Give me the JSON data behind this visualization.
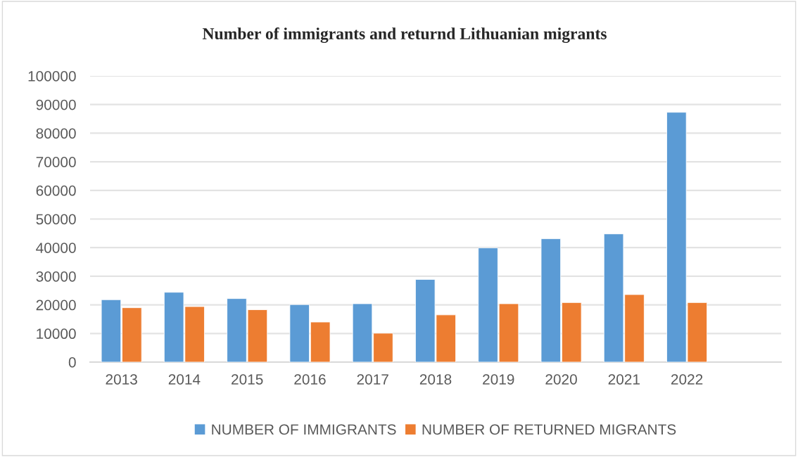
{
  "chart_data": {
    "type": "bar",
    "title": "Number of immigrants and returnd Lithuanian migrants",
    "categories": [
      "2013",
      "2014",
      "2015",
      "2016",
      "2017",
      "2018",
      "2019",
      "2020",
      "2021",
      "2022",
      null
    ],
    "series": [
      {
        "name": "NUMBER OF IMMIGRANTS",
        "color": "#5b9bd5",
        "values": [
          21800,
          24400,
          22200,
          20100,
          20400,
          28900,
          39900,
          43100,
          44800,
          87300,
          null
        ]
      },
      {
        "name": "NUMBER OF RETURNED MIGRANTS",
        "color": "#ed7d31",
        "values": [
          19000,
          19400,
          18300,
          14000,
          10100,
          16500,
          20400,
          20800,
          23600,
          20800,
          null
        ]
      }
    ],
    "ylim": [
      0,
      100000
    ],
    "yticks": [
      0,
      10000,
      20000,
      30000,
      40000,
      50000,
      60000,
      70000,
      80000,
      90000,
      100000
    ],
    "grid": "y",
    "legend": "bottom"
  }
}
